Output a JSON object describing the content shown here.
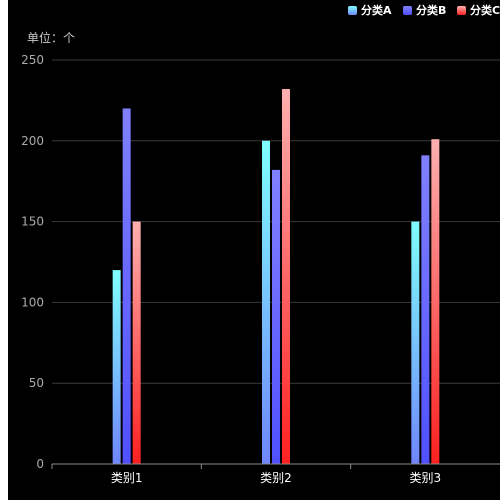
{
  "chart_data": {
    "type": "bar",
    "unit_label": "单位：个",
    "categories": [
      "类别1",
      "类别2",
      "类别3"
    ],
    "series": [
      {
        "name": "分类A",
        "values": [
          120,
          200,
          150
        ],
        "color_top": "#7fffff",
        "color_bottom": "#6f86ff"
      },
      {
        "name": "分类B",
        "values": [
          220,
          182,
          191
        ],
        "color_top": "#8080ff",
        "color_bottom": "#5050ff"
      },
      {
        "name": "分类C",
        "values": [
          150,
          232,
          201
        ],
        "color_top": "#ffb0b0",
        "color_bottom": "#ff2020"
      }
    ],
    "ylim": [
      0,
      250
    ],
    "yticks": [
      0,
      50,
      100,
      150,
      200,
      250
    ],
    "grid": true,
    "legend_position": "top-right",
    "background": "#000000"
  }
}
